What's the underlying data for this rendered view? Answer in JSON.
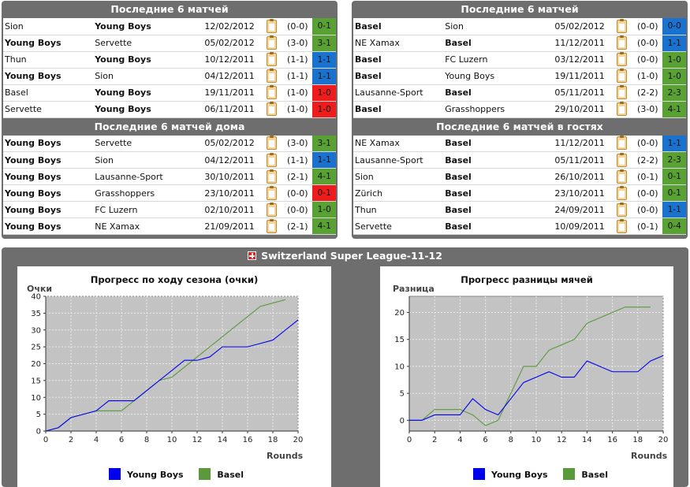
{
  "left_top": {
    "title": "Последние 6 матчей",
    "rows": [
      {
        "home": "Sion",
        "away": "Young Boys",
        "bold": "away",
        "date": "12/02/2012",
        "ht": "(0-0)",
        "score": "0-1",
        "color": "#58a132"
      },
      {
        "home": "Young Boys",
        "away": "Servette",
        "bold": "home",
        "date": "05/02/2012",
        "ht": "(3-0)",
        "score": "3-1",
        "color": "#58a132"
      },
      {
        "home": "Thun",
        "away": "Young Boys",
        "bold": "away",
        "date": "10/12/2011",
        "ht": "(1-1)",
        "score": "1-1",
        "color": "#1a72cf"
      },
      {
        "home": "Young Boys",
        "away": "Sion",
        "bold": "home",
        "date": "04/12/2011",
        "ht": "(1-1)",
        "score": "1-1",
        "color": "#1a72cf"
      },
      {
        "home": "Basel",
        "away": "Young Boys",
        "bold": "away",
        "date": "19/11/2011",
        "ht": "(1-0)",
        "score": "1-0",
        "color": "#ee1c1c"
      },
      {
        "home": "Servette",
        "away": "Young Boys",
        "bold": "away",
        "date": "06/11/2011",
        "ht": "(1-0)",
        "score": "1-0",
        "color": "#ee1c1c"
      }
    ]
  },
  "left_bottom": {
    "title": "Последние 6 матчей дома",
    "rows": [
      {
        "home": "Young Boys",
        "away": "Servette",
        "bold": "home",
        "date": "05/02/2012",
        "ht": "(3-0)",
        "score": "3-1",
        "color": "#58a132"
      },
      {
        "home": "Young Boys",
        "away": "Sion",
        "bold": "home",
        "date": "04/12/2011",
        "ht": "(1-1)",
        "score": "1-1",
        "color": "#1a72cf"
      },
      {
        "home": "Young Boys",
        "away": "Lausanne-Sport",
        "bold": "home",
        "date": "30/10/2011",
        "ht": "(2-1)",
        "score": "4-1",
        "color": "#58a132"
      },
      {
        "home": "Young Boys",
        "away": "Grasshoppers",
        "bold": "home",
        "date": "23/10/2011",
        "ht": "(0-0)",
        "score": "0-1",
        "color": "#ee1c1c"
      },
      {
        "home": "Young Boys",
        "away": "FC Luzern",
        "bold": "home",
        "date": "02/10/2011",
        "ht": "(0-0)",
        "score": "1-0",
        "color": "#58a132"
      },
      {
        "home": "Young Boys",
        "away": "NE Xamax",
        "bold": "home",
        "date": "21/09/2011",
        "ht": "(2-1)",
        "score": "4-1",
        "color": "#58a132"
      }
    ]
  },
  "right_top": {
    "title": "Последние 6 матчей",
    "rows": [
      {
        "home": "Basel",
        "away": "Sion",
        "bold": "home",
        "date": "05/02/2012",
        "ht": "(0-0)",
        "score": "0-0",
        "color": "#1a72cf"
      },
      {
        "home": "NE Xamax",
        "away": "Basel",
        "bold": "away",
        "date": "11/12/2011",
        "ht": "(0-0)",
        "score": "1-1",
        "color": "#1a72cf"
      },
      {
        "home": "Basel",
        "away": "FC Luzern",
        "bold": "home",
        "date": "03/12/2011",
        "ht": "(0-0)",
        "score": "1-0",
        "color": "#58a132"
      },
      {
        "home": "Basel",
        "away": "Young Boys",
        "bold": "home",
        "date": "19/11/2011",
        "ht": "(1-0)",
        "score": "1-0",
        "color": "#58a132"
      },
      {
        "home": "Lausanne-Sport",
        "away": "Basel",
        "bold": "away",
        "date": "05/11/2011",
        "ht": "(2-2)",
        "score": "2-3",
        "color": "#58a132"
      },
      {
        "home": "Basel",
        "away": "Grasshoppers",
        "bold": "home",
        "date": "29/10/2011",
        "ht": "(3-0)",
        "score": "4-1",
        "color": "#58a132"
      }
    ]
  },
  "right_bottom": {
    "title": "Последние 6 матчей в гостях",
    "rows": [
      {
        "home": "NE Xamax",
        "away": "Basel",
        "bold": "away",
        "date": "11/12/2011",
        "ht": "(0-0)",
        "score": "1-1",
        "color": "#1a72cf"
      },
      {
        "home": "Lausanne-Sport",
        "away": "Basel",
        "bold": "away",
        "date": "05/11/2011",
        "ht": "(2-2)",
        "score": "2-3",
        "color": "#58a132"
      },
      {
        "home": "Sion",
        "away": "Basel",
        "bold": "away",
        "date": "26/10/2011",
        "ht": "(0-1)",
        "score": "0-1",
        "color": "#58a132"
      },
      {
        "home": "Zürich",
        "away": "Basel",
        "bold": "away",
        "date": "23/10/2011",
        "ht": "(0-0)",
        "score": "0-1",
        "color": "#58a132"
      },
      {
        "home": "Thun",
        "away": "Basel",
        "bold": "away",
        "date": "24/09/2011",
        "ht": "(0-0)",
        "score": "1-1",
        "color": "#1a72cf"
      },
      {
        "home": "Servette",
        "away": "Basel",
        "bold": "away",
        "date": "10/09/2011",
        "ht": "(0-1)",
        "score": "0-4",
        "color": "#58a132"
      }
    ]
  },
  "league": {
    "name": "Switzerland Super League-11-12",
    "flag_icon": "switzerland-flag-icon"
  },
  "chart_data": [
    {
      "type": "line",
      "title": "Прогресс по ходу сезона (очки)",
      "ylabel": "Очки",
      "xlabel": "Rounds",
      "xlim": [
        0,
        20
      ],
      "ylim": [
        0,
        40
      ],
      "xticks": [
        0,
        2,
        4,
        6,
        8,
        10,
        12,
        14,
        16,
        18,
        20
      ],
      "yticks": [
        0,
        5,
        10,
        15,
        20,
        25,
        30,
        35,
        40
      ],
      "grid": true,
      "series": [
        {
          "name": "Young Boys",
          "color": "#0000ee",
          "x": [
            0,
            1,
            2,
            3,
            4,
            5,
            6,
            7,
            8,
            9,
            10,
            11,
            12,
            13,
            14,
            15,
            16,
            17,
            18,
            19,
            20
          ],
          "y": [
            0,
            1,
            4,
            5,
            6,
            9,
            9,
            9,
            12,
            15,
            18,
            21,
            21,
            22,
            25,
            25,
            25,
            26,
            27,
            30,
            33
          ]
        },
        {
          "name": "Basel",
          "color": "#5a9a3c",
          "x": [
            0,
            1,
            2,
            3,
            4,
            5,
            6,
            7,
            8,
            9,
            10,
            11,
            12,
            13,
            14,
            15,
            16,
            17,
            18,
            19
          ],
          "y": [
            0,
            1,
            4,
            5,
            6,
            6,
            6,
            9,
            12,
            15,
            16,
            19,
            22,
            25,
            28,
            31,
            34,
            37,
            38,
            39
          ]
        }
      ]
    },
    {
      "type": "line",
      "title": "Прогресс разницы мячей",
      "ylabel": "Разница",
      "xlabel": "Rounds",
      "xlim": [
        0,
        20
      ],
      "ylim": [
        -2,
        23
      ],
      "xticks": [
        0,
        2,
        4,
        6,
        8,
        10,
        12,
        14,
        16,
        18,
        20
      ],
      "yticks": [
        0,
        5,
        10,
        15,
        20
      ],
      "grid": true,
      "series": [
        {
          "name": "Young Boys",
          "color": "#0000ee",
          "x": [
            0,
            1,
            2,
            3,
            4,
            5,
            6,
            7,
            8,
            9,
            10,
            11,
            12,
            13,
            14,
            15,
            16,
            17,
            18,
            19,
            20
          ],
          "y": [
            0,
            0,
            1,
            1,
            1,
            4,
            2,
            1,
            4,
            7,
            8,
            9,
            8,
            8,
            11,
            10,
            9,
            9,
            9,
            11,
            12
          ]
        },
        {
          "name": "Basel",
          "color": "#5a9a3c",
          "x": [
            0,
            1,
            2,
            3,
            4,
            5,
            6,
            7,
            8,
            9,
            10,
            11,
            12,
            13,
            14,
            15,
            16,
            17,
            18,
            19
          ],
          "y": [
            0,
            0,
            2,
            2,
            2,
            1,
            -1,
            0,
            5,
            10,
            10,
            13,
            14,
            15,
            18,
            19,
            20,
            21,
            21,
            21
          ]
        }
      ]
    }
  ]
}
